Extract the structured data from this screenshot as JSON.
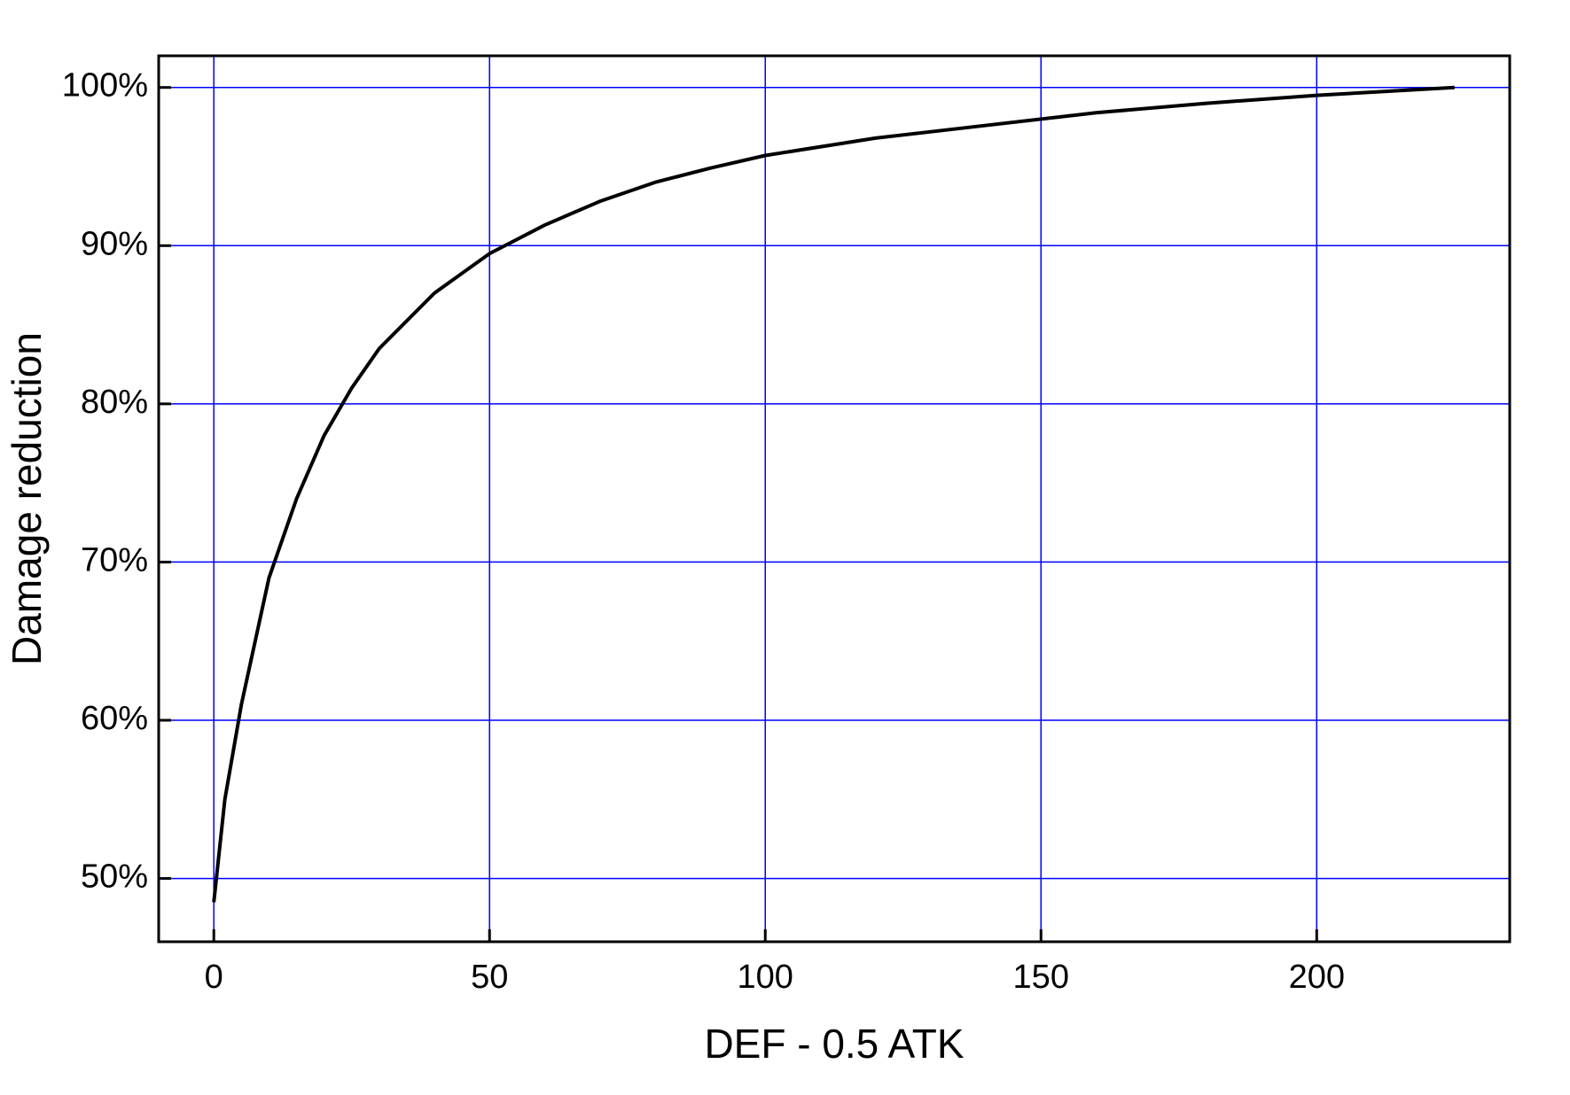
{
  "chart_data": {
    "type": "line",
    "x_label": "DEF - 0.5 ATK",
    "y_label": "Damage reduction",
    "x": [
      0,
      2,
      5,
      10,
      15,
      20,
      25,
      30,
      40,
      50,
      60,
      70,
      80,
      90,
      100,
      120,
      140,
      160,
      180,
      200,
      225
    ],
    "series": [
      {
        "name": "Damage reduction",
        "color": "#000000",
        "values": [
          48.5,
          55,
          61,
          69,
          74,
          78,
          81,
          83.5,
          87,
          89.5,
          91.3,
          92.8,
          94,
          94.9,
          95.7,
          96.8,
          97.6,
          98.4,
          99,
          99.5,
          100
        ]
      }
    ],
    "xlim": [
      -10,
      235
    ],
    "ylim": [
      46,
      102
    ],
    "xticks": [
      0,
      50,
      100,
      150,
      200
    ],
    "yticks": [
      {
        "value": 50,
        "label": "50%"
      },
      {
        "value": 60,
        "label": "60%"
      },
      {
        "value": 70,
        "label": "70%"
      },
      {
        "value": 80,
        "label": "80%"
      },
      {
        "value": 90,
        "label": "90%"
      },
      {
        "value": 100,
        "label": "100%"
      }
    ],
    "grid": true,
    "grid_color": "#0000ff"
  }
}
